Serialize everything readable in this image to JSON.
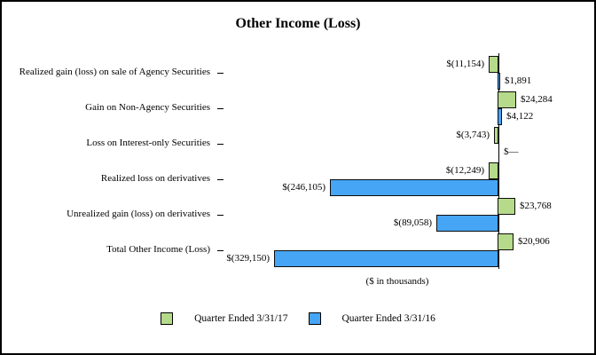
{
  "page": {
    "background_color": "#ffffff",
    "border_color": "#000000"
  },
  "chart_data": {
    "type": "bar",
    "orientation": "horizontal",
    "title": "Other Income (Loss)",
    "units_label": "($ in thousands)",
    "xlabel": "",
    "ylabel": "",
    "legend_position": "bottom",
    "grid": false,
    "zero_axis_line": true,
    "xlim_thousands": [
      -410000,
      110000
    ],
    "categories": [
      "Realized gain (loss) on sale of Agency Securities",
      "Gain on Non-Agency Securities",
      "Loss on Interest-only Securities",
      "Realized loss on derivatives",
      "Unrealized gain (loss) on derivatives",
      "Total Other Income (Loss)"
    ],
    "series": [
      {
        "name": "Quarter Ended 3/31/17",
        "color": "#b5da8a",
        "values": [
          -11154,
          24284,
          -3743,
          -12249,
          23768,
          20906
        ],
        "labels": [
          "$(11,154)",
          "$24,284",
          "$(3,743)",
          "$(12,249)",
          "$23,768",
          "$20,906"
        ]
      },
      {
        "name": "Quarter Ended 3/31/16",
        "color": "#46a5f5",
        "values": [
          1891,
          4122,
          0,
          -246105,
          -89058,
          -329150
        ],
        "labels": [
          "$1,891",
          "$4,122",
          "$—",
          "$(246,105)",
          "$(89,058)",
          "$(329,150)"
        ]
      }
    ]
  }
}
